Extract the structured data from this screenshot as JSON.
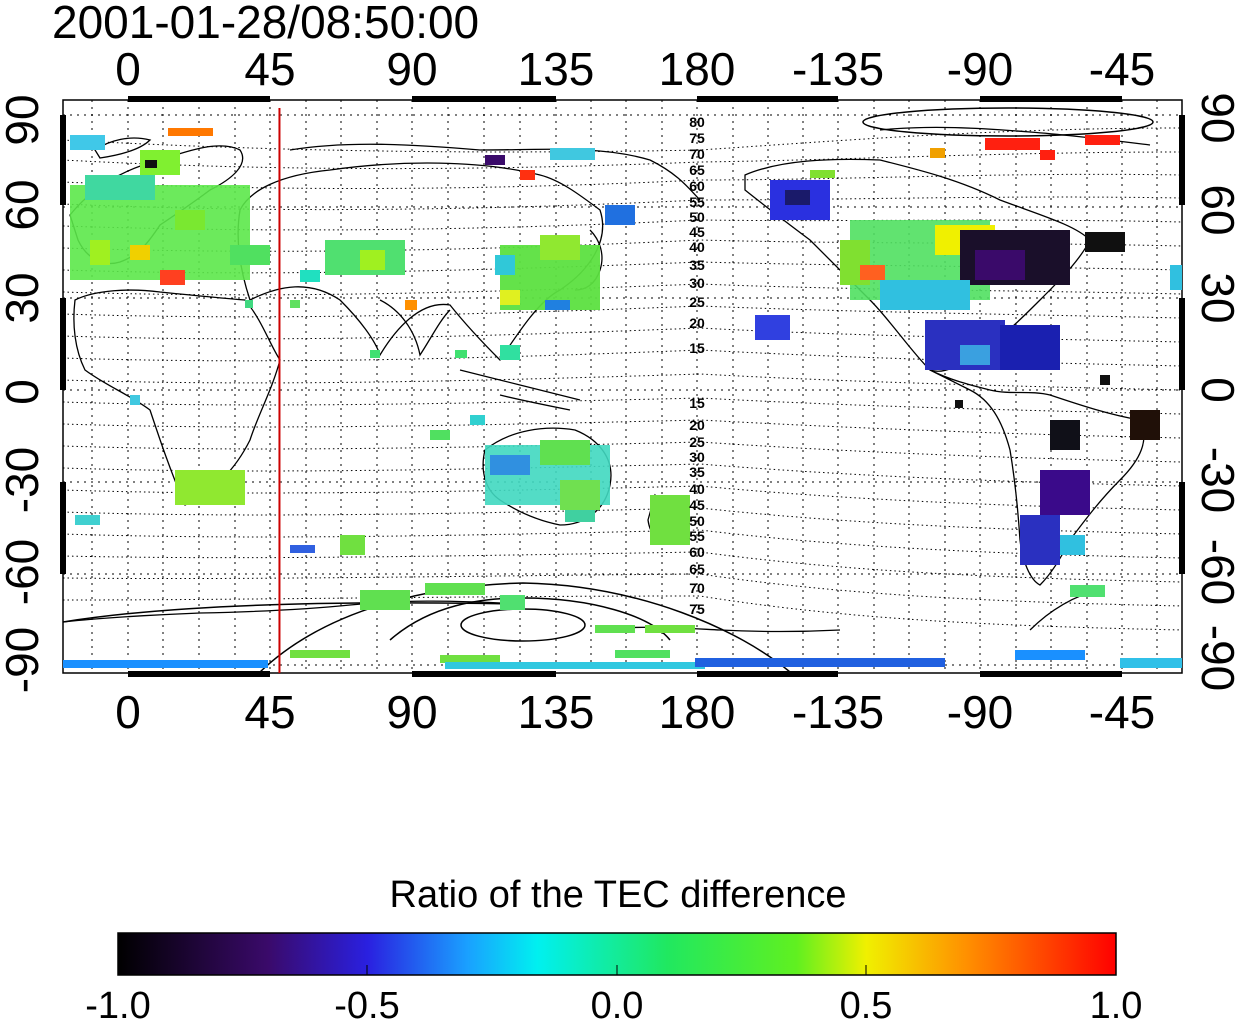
{
  "timestamp": "2001-01-28/08:50:00",
  "map": {
    "top_lon_labels": [
      "0",
      "45",
      "90",
      "135",
      "180",
      "-135",
      "-90",
      "-45"
    ],
    "bottom_lon_labels": [
      "0",
      "45",
      "90",
      "135",
      "180",
      "-135",
      "-90",
      "-45"
    ],
    "left_lat_labels": [
      "90",
      "60",
      "30",
      "0",
      "-30",
      "-60",
      "-90"
    ],
    "right_lat_labels": [
      "90",
      "60",
      "30",
      "0",
      "-30",
      "-60",
      "-90"
    ],
    "contour_labels_north": [
      "80",
      "75",
      "70",
      "65",
      "60",
      "55",
      "50",
      "45",
      "40",
      "35",
      "30",
      "25",
      "20",
      "15"
    ],
    "contour_labels_south": [
      "15",
      "20",
      "25",
      "30",
      "35",
      "40",
      "45",
      "50",
      "55",
      "60",
      "65",
      "70",
      "75"
    ],
    "marker_longitude": 48,
    "marker_color": "#cc0000"
  },
  "colorbar": {
    "title": "Ratio of the TEC difference",
    "tick_labels": [
      "-1.0",
      "-0.5",
      "0.0",
      "0.5",
      "1.0"
    ],
    "range": [
      -1.0,
      1.0
    ]
  }
}
